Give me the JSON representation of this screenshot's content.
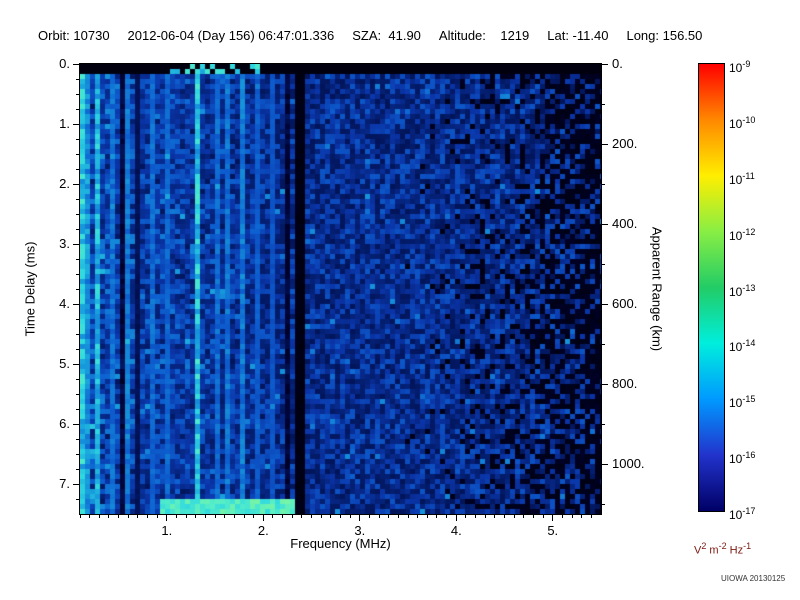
{
  "header": {
    "segments": [
      "Orbit: 10730",
      "2012-06-04 (Day 156) 06:47:01.336",
      "SZA:  41.90",
      "Altitude:    1219",
      "Lat: -11.40",
      "Long: 156.50"
    ]
  },
  "footer": {
    "credit": "UIOWA 20130125"
  },
  "chart_data": {
    "type": "heatmap",
    "description": "Radar sounder ionogram: received spectral density vs frequency (x) and time delay / apparent range (y). Bright cyan vertical streaks at low frequencies, black dropout column near 2.37 MHz, black patches at high frequencies, black band at zero delay, bright echo segment near 7.4 ms between 1 and 2.3 MHz.",
    "xlabel": "Frequency (MHz)",
    "ylabel_left": "Time Delay (ms)",
    "ylabel_right": "Apparent Range (km)",
    "x_range_mhz": [
      0.1,
      5.5
    ],
    "x_tick_values": [
      1,
      2,
      3,
      4,
      5
    ],
    "x_tick_labels": [
      "1.",
      "2.",
      "3.",
      "4.",
      "5."
    ],
    "x_minor_step_mhz": 0.1,
    "y_range_ms": [
      0,
      7.5
    ],
    "y_tick_values": [
      0,
      1,
      2,
      3,
      4,
      5,
      6,
      7
    ],
    "y_tick_labels": [
      "0.",
      "1.",
      "2.",
      "3.",
      "4.",
      "5.",
      "6.",
      "7."
    ],
    "y_minor_step_ms": 0.25,
    "right_range_km": [
      0,
      1125
    ],
    "right_tick_values": [
      0,
      200,
      400,
      600,
      800,
      1000
    ],
    "right_tick_labels": [
      "0.",
      "200.",
      "400.",
      "600.",
      "800.",
      "1000."
    ],
    "right_minor_step_km": 100,
    "colorbar": {
      "base": "10",
      "exponents": [
        "-9",
        "-10",
        "-11",
        "-12",
        "-13",
        "-14",
        "-15",
        "-16",
        "-17"
      ],
      "units_parts": [
        {
          "text": "V"
        },
        {
          "sup": "2"
        },
        {
          "text": " m"
        },
        {
          "sup": "-2"
        },
        {
          "text": " Hz"
        },
        {
          "sup": "-1"
        }
      ],
      "units_color": "#7b1a10",
      "gradient_top_to_bottom": [
        "#ff0000",
        "#ff8800",
        "#ffee00",
        "#88ee44",
        "#22cc66",
        "#00eedd",
        "#0099ff",
        "#2233cc",
        "#000066"
      ]
    },
    "heatmap_render": {
      "seed": 20130125,
      "colormap_stops": [
        [
          0.0,
          "#000008"
        ],
        [
          0.12,
          "#000233"
        ],
        [
          0.25,
          "#031a66"
        ],
        [
          0.4,
          "#0a35a8"
        ],
        [
          0.55,
          "#0d5fd0"
        ],
        [
          0.7,
          "#18a0dd"
        ],
        [
          0.82,
          "#30d8e0"
        ],
        [
          0.92,
          "#55eec8"
        ],
        [
          1.0,
          "#8cf890"
        ]
      ],
      "bright_streaks_mhz": [
        {
          "f": 0.13,
          "s": 1.0
        },
        {
          "f": 0.2,
          "s": 0.7
        },
        {
          "f": 0.3,
          "s": 0.9
        },
        {
          "f": 0.45,
          "s": 0.5
        },
        {
          "f": 0.6,
          "s": 0.55
        },
        {
          "f": 0.72,
          "s": 0.5
        },
        {
          "f": 0.85,
          "s": 0.45
        },
        {
          "f": 1.0,
          "s": 0.4
        },
        {
          "f": 1.32,
          "s": 1.0
        },
        {
          "f": 1.5,
          "s": 0.45
        },
        {
          "f": 1.63,
          "s": 0.5
        },
        {
          "f": 1.76,
          "s": 0.55
        },
        {
          "f": 1.95,
          "s": 0.35
        },
        {
          "f": 2.1,
          "s": 0.3
        }
      ],
      "dark_streaks_mhz": [
        0.52,
        0.68,
        2.25
      ],
      "black_gap_mhz": [
        2.33,
        2.41
      ],
      "top_black_band_ms": 0.18,
      "bottom_bright_segment": {
        "ms_from": 7.28,
        "f_from": 0.95,
        "f_to": 2.32
      },
      "right_dropout_start_mhz": 3.2
    }
  }
}
